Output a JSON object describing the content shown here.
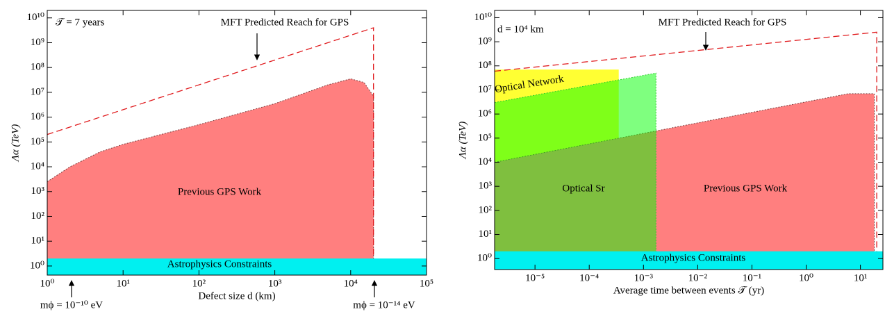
{
  "chart_data": [
    {
      "type": "area",
      "xlabel": "Defect size d (km)",
      "ylabel": "Λα (TeV)",
      "xlim": [
        1,
        100000
      ],
      "ylim": [
        0.43,
        20000000000
      ],
      "log_x": true,
      "log_y": true,
      "xticks": [
        {
          "value": 1,
          "label": "10⁰"
        },
        {
          "value": 10,
          "label": "10¹"
        },
        {
          "value": 100,
          "label": "10²"
        },
        {
          "value": 1000,
          "label": "10³"
        },
        {
          "value": 10000,
          "label": "10⁴"
        },
        {
          "value": 100000,
          "label": "10⁵"
        }
      ],
      "yticks": [
        {
          "value": 1,
          "label": "10⁰"
        },
        {
          "value": 10,
          "label": "10¹"
        },
        {
          "value": 100,
          "label": "10²"
        },
        {
          "value": 1000,
          "label": "10³"
        },
        {
          "value": 10000,
          "label": "10⁴"
        },
        {
          "value": 100000,
          "label": "10⁵"
        },
        {
          "value": 1000000,
          "label": "10⁶"
        },
        {
          "value": 10000000,
          "label": "10⁷"
        },
        {
          "value": 100000000,
          "label": "10⁸"
        },
        {
          "value": 1000000000,
          "label": "10⁹"
        },
        {
          "value": 10000000000,
          "label": "10¹⁰"
        }
      ],
      "annotations": [
        "𝒯 = 7 years",
        "mϕ = 10⁻¹⁰ eV",
        "mϕ = 10⁻¹⁴ eV"
      ],
      "series": [
        {
          "name": "Previous GPS Work",
          "color": "#ff7f7f",
          "fill": true,
          "stroke": "#7a4040",
          "dashed": true,
          "x": [
            1,
            2,
            5,
            10,
            100,
            1000,
            5000,
            10000,
            15000,
            20000
          ],
          "values": [
            2500,
            10000,
            40000,
            80000,
            500000,
            3500000,
            20000000,
            35000000,
            25000000,
            7000000
          ]
        },
        {
          "name": "MFT Predicted Reach for GPS",
          "color": "#e0191c",
          "fill": false,
          "dashed": true,
          "x": [
            1,
            20000,
            20000
          ],
          "values": [
            200000,
            4000000000,
            0.43
          ]
        },
        {
          "name": "Astrophysics Constraints",
          "color": "#00f0f0",
          "fill": true,
          "x": [
            1,
            100000
          ],
          "values": [
            2,
            2
          ]
        }
      ]
    },
    {
      "type": "area",
      "xlabel": "Average time between events 𝒯 (yr)",
      "ylabel": "Λα (TeV)",
      "xlim": [
        1.8e-06,
        26
      ],
      "ylim": [
        0.35,
        20000000000
      ],
      "log_x": true,
      "log_y": true,
      "xticks": [
        {
          "value": 1e-05,
          "label": "10⁻⁵"
        },
        {
          "value": 0.0001,
          "label": "10⁻⁴"
        },
        {
          "value": 0.001,
          "label": "10⁻³"
        },
        {
          "value": 0.01,
          "label": "10⁻²"
        },
        {
          "value": 0.1,
          "label": "10⁻¹"
        },
        {
          "value": 1,
          "label": "10⁰"
        },
        {
          "value": 10,
          "label": "10¹"
        }
      ],
      "yticks": [
        {
          "value": 1,
          "label": "10⁰"
        },
        {
          "value": 10,
          "label": "10¹"
        },
        {
          "value": 100,
          "label": "10²"
        },
        {
          "value": 1000,
          "label": "10³"
        },
        {
          "value": 10000,
          "label": "10⁴"
        },
        {
          "value": 100000,
          "label": "10⁵"
        },
        {
          "value": 1000000,
          "label": "10⁶"
        },
        {
          "value": 10000000,
          "label": "10⁷"
        },
        {
          "value": 100000000,
          "label": "10⁸"
        },
        {
          "value": 1000000000,
          "label": "10⁹"
        },
        {
          "value": 10000000000,
          "label": "10¹⁰"
        }
      ],
      "annotations": [
        "d = 10⁴ km"
      ],
      "series": [
        {
          "name": "Optical Network",
          "color": "#ffff33",
          "fill": true,
          "x": [
            1.8e-06,
            0.00035
          ],
          "values": [
            70000000,
            70000000
          ]
        },
        {
          "name": "Previous GPS Work",
          "color": "#ff7f7f",
          "fill": true,
          "stroke": "#7a4040",
          "dashed": true,
          "x": [
            1.8e-06,
            6,
            18
          ],
          "values": [
            10000,
            7000000,
            7000000
          ]
        },
        {
          "name": "Optical Sr",
          "color": "#00ff00",
          "opacity": 0.5,
          "fill": true,
          "stroke": "#2ecc2e",
          "dashed": true,
          "x": [
            1.8e-06,
            0.0017
          ],
          "values": [
            3000000,
            50000000
          ]
        },
        {
          "name": "MFT Predicted Reach for GPS",
          "color": "#e0191c",
          "fill": false,
          "dashed": true,
          "x": [
            1.8e-06,
            20,
            20
          ],
          "values": [
            60000000,
            2500000000,
            0.35
          ]
        },
        {
          "name": "Astrophysics Constraints",
          "color": "#00f0f0",
          "fill": true,
          "x": [
            1.8e-06,
            26
          ],
          "values": [
            2,
            2
          ]
        }
      ]
    }
  ]
}
